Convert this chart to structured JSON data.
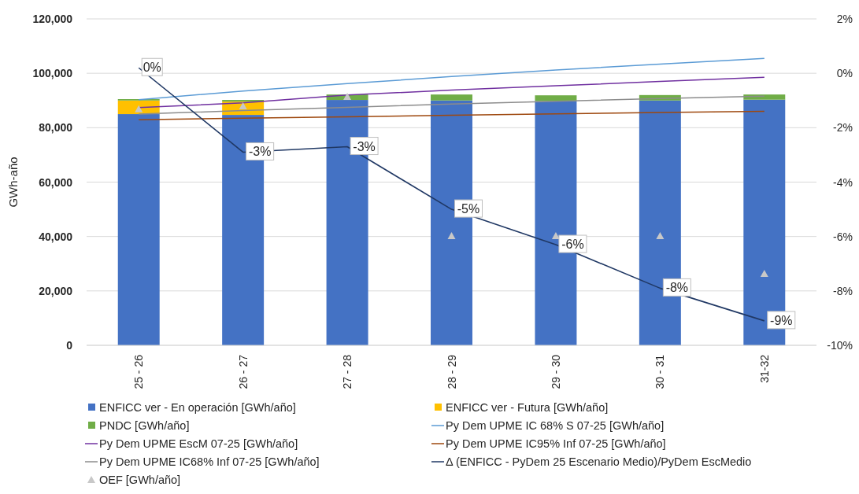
{
  "chart_data": {
    "type": "bar",
    "stacked": true,
    "ylabel": "GWh-año",
    "categories": [
      "25 - 26",
      "26 - 27",
      "27 - 28",
      "28 - 29",
      "29 - 30",
      "30 - 31",
      "31-32"
    ],
    "ylim": [
      0,
      120000
    ],
    "yticks": [
      {
        "value": 0,
        "label": "0"
      },
      {
        "value": 20000,
        "label": "20,000"
      },
      {
        "value": 40000,
        "label": "40,000"
      },
      {
        "value": 60000,
        "label": "60,000"
      },
      {
        "value": 80000,
        "label": "80,000"
      },
      {
        "value": 100000,
        "label": "100,000"
      },
      {
        "value": 120000,
        "label": "120,000"
      }
    ],
    "y2lim": [
      -10,
      2
    ],
    "y2ticks": [
      {
        "value": -10,
        "label": "-10%"
      },
      {
        "value": -8,
        "label": "-8%"
      },
      {
        "value": -6,
        "label": "-6%"
      },
      {
        "value": -4,
        "label": "-4%"
      },
      {
        "value": -2,
        "label": "-2%"
      },
      {
        "value": 0,
        "label": "0%"
      },
      {
        "value": 2,
        "label": "2%"
      }
    ],
    "grid": "y",
    "legend": "bottom",
    "series": [
      {
        "name": "ENFICC ver - En operación [GWh/año]",
        "color": "#4472c4",
        "values": [
          85000,
          84700,
          90200,
          90000,
          89800,
          90000,
          90300
        ]
      },
      {
        "name": "ENFICC ver - Futura [GWh/año]",
        "color": "#ffc000",
        "values": [
          5000,
          4900,
          0,
          0,
          0,
          0,
          0
        ]
      },
      {
        "name": "PNDC [GWh/año]",
        "color": "#70ad47",
        "values": [
          500,
          600,
          2000,
          2200,
          2100,
          2000,
          1900
        ]
      },
      {
        "name": "Py Dem UPME IC 68% S 07-25 [GWh/año]",
        "type": "line",
        "color": "#5b9bd5",
        "values": [
          90300,
          93500,
          96200,
          98800,
          101200,
          103400,
          105500
        ]
      },
      {
        "name": "Py Dem UPME EscM 07-25 [GWh/año]",
        "type": "line",
        "color": "#7030a0",
        "values": [
          87400,
          89100,
          92000,
          93800,
          95400,
          97000,
          98500
        ]
      },
      {
        "name": "Py Dem UPME IC95% Inf 07-25 [GWh/año]",
        "type": "line",
        "color": "#9e480e",
        "values": [
          82900,
          83500,
          84000,
          84600,
          85100,
          85600,
          86000
        ]
      },
      {
        "name": "Py Dem UPME IC68% Inf 07-25 [GWh/año]",
        "type": "line",
        "color": "#8c8c8c",
        "values": [
          85000,
          86300,
          87500,
          88700,
          89700,
          90700,
          91600
        ]
      },
      {
        "name": "Δ (ENFICC - PyDem 25 Escenario Medio)/PyDem EscMedio",
        "type": "line",
        "axis": "y2",
        "color": "#203864",
        "values": [
          0.2,
          -2.9,
          -2.7,
          -5.0,
          -6.3,
          -7.9,
          -9.1
        ],
        "value_labels": [
          "0%",
          "-3%",
          "-3%",
          "-5%",
          "-6%",
          "-8%",
          "-9%"
        ]
      },
      {
        "name": "OEF [GWh/año]",
        "type": "scatter",
        "marker": "triangle",
        "color": "#c8c8c8",
        "values": [
          86800,
          87900,
          91400,
          40200,
          40200,
          40200,
          26300
        ]
      }
    ]
  }
}
